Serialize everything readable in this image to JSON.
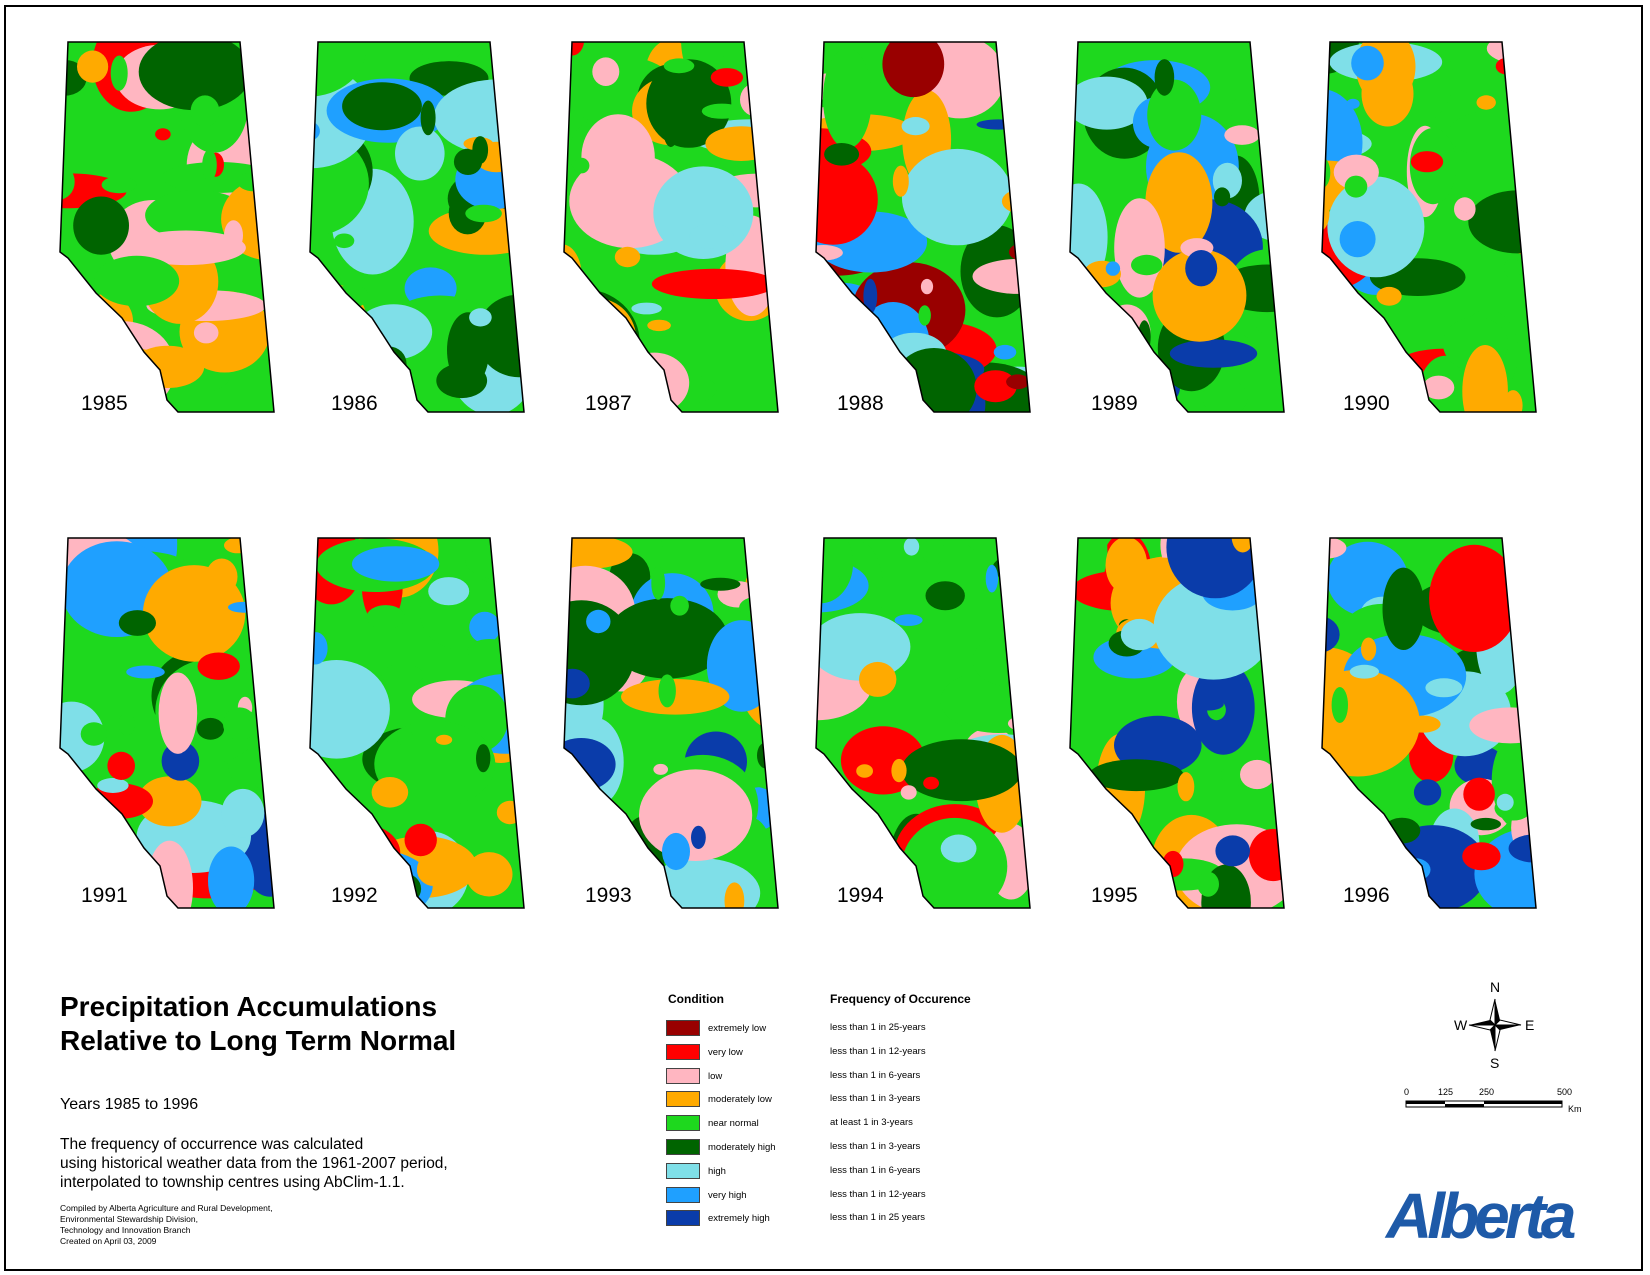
{
  "maps": [
    {
      "year": "1985"
    },
    {
      "year": "1986"
    },
    {
      "year": "1987"
    },
    {
      "year": "1988"
    },
    {
      "year": "1989"
    },
    {
      "year": "1990"
    },
    {
      "year": "1991"
    },
    {
      "year": "1992"
    },
    {
      "year": "1993"
    },
    {
      "year": "1994"
    },
    {
      "year": "1995"
    },
    {
      "year": "1996"
    }
  ],
  "title": {
    "line1": "Precipitation Accumulations",
    "line2": "Relative to Long Term Normal"
  },
  "years_range": "Years 1985 to 1996",
  "description": {
    "line1": "The frequency of occurrence was calculated",
    "line2": "using historical weather data from the 1961-2007 period,",
    "line3": "interpolated to township centres using AbClim-1.1."
  },
  "credits": {
    "line1": "Compiled by Alberta Agriculture and Rural Development,",
    "line2": "Environmental Stewardship Division,",
    "line3": "Technology and Innovation Branch",
    "line4": "Created on April 03, 2009"
  },
  "legend": {
    "condition_header": "Condition",
    "frequency_header": "Frequency of Occurence",
    "items": [
      {
        "condition": "extremely low",
        "frequency": "less than 1 in 25-years",
        "color": "#990000"
      },
      {
        "condition": "very low",
        "frequency": "less than 1 in 12-years",
        "color": "#ff0000"
      },
      {
        "condition": "low",
        "frequency": "less than 1 in 6-years",
        "color": "#ffb6c1"
      },
      {
        "condition": "moderately low",
        "frequency": "less than 1 in 3-years",
        "color": "#ffaa00"
      },
      {
        "condition": "near normal",
        "frequency": "at least 1 in 3-years",
        "color": "#1ed81e"
      },
      {
        "condition": "moderately high",
        "frequency": "less than 1 in 3-years",
        "color": "#006400"
      },
      {
        "condition": "high",
        "frequency": "less than 1 in 6-years",
        "color": "#7fdfe8"
      },
      {
        "condition": "very high",
        "frequency": "less than 1 in 12-years",
        "color": "#1fa0ff"
      },
      {
        "condition": "extremely high",
        "frequency": "less than 1 in 25 years",
        "color": "#0a3caa"
      }
    ]
  },
  "compass": {
    "n": "N",
    "s": "S",
    "e": "E",
    "w": "W"
  },
  "scale": {
    "ticks": [
      "0",
      "125",
      "250",
      "500"
    ],
    "unit": "Km"
  },
  "logo_text": "Alberta"
}
